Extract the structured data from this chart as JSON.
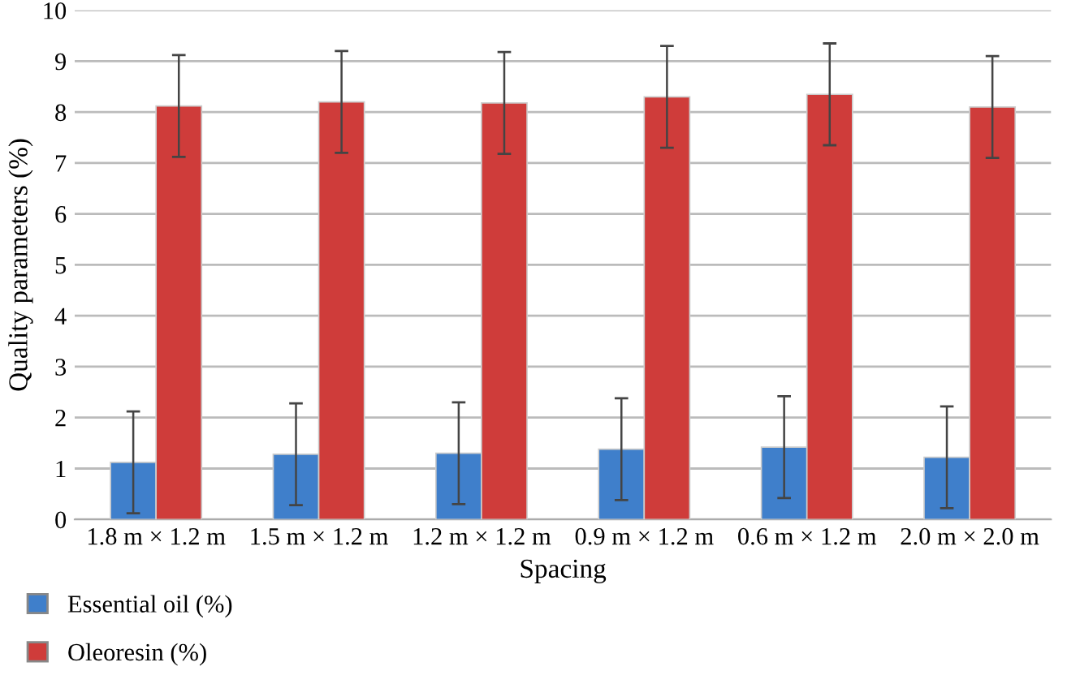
{
  "chart_data": {
    "type": "bar",
    "xlabel": "Spacing",
    "ylabel": "Quality parameters (%)",
    "categories": [
      "1.8 m × 1.2 m",
      "1.5 m × 1.2 m",
      "1.2 m × 1.2 m",
      "0.9 m × 1.2 m",
      "0.6 m × 1.2 m",
      "2.0 m × 2.0 m"
    ],
    "series": [
      {
        "name": "Essential oil (%)",
        "color": "#3f7fcb",
        "values": [
          1.12,
          1.28,
          1.3,
          1.38,
          1.42,
          1.22
        ],
        "errors": [
          1,
          1,
          1,
          1,
          1,
          1
        ]
      },
      {
        "name": "Oleoresin (%)",
        "color": "#cf3c3a",
        "values": [
          8.12,
          8.2,
          8.18,
          8.3,
          8.35,
          8.1
        ],
        "errors": [
          1,
          1,
          1,
          1,
          1,
          1
        ]
      }
    ],
    "ylim": [
      0,
      10
    ],
    "yticks": [
      0,
      1,
      2,
      3,
      4,
      5,
      6,
      7,
      8,
      9,
      10
    ],
    "grid": "y",
    "legend": "bottom left"
  }
}
